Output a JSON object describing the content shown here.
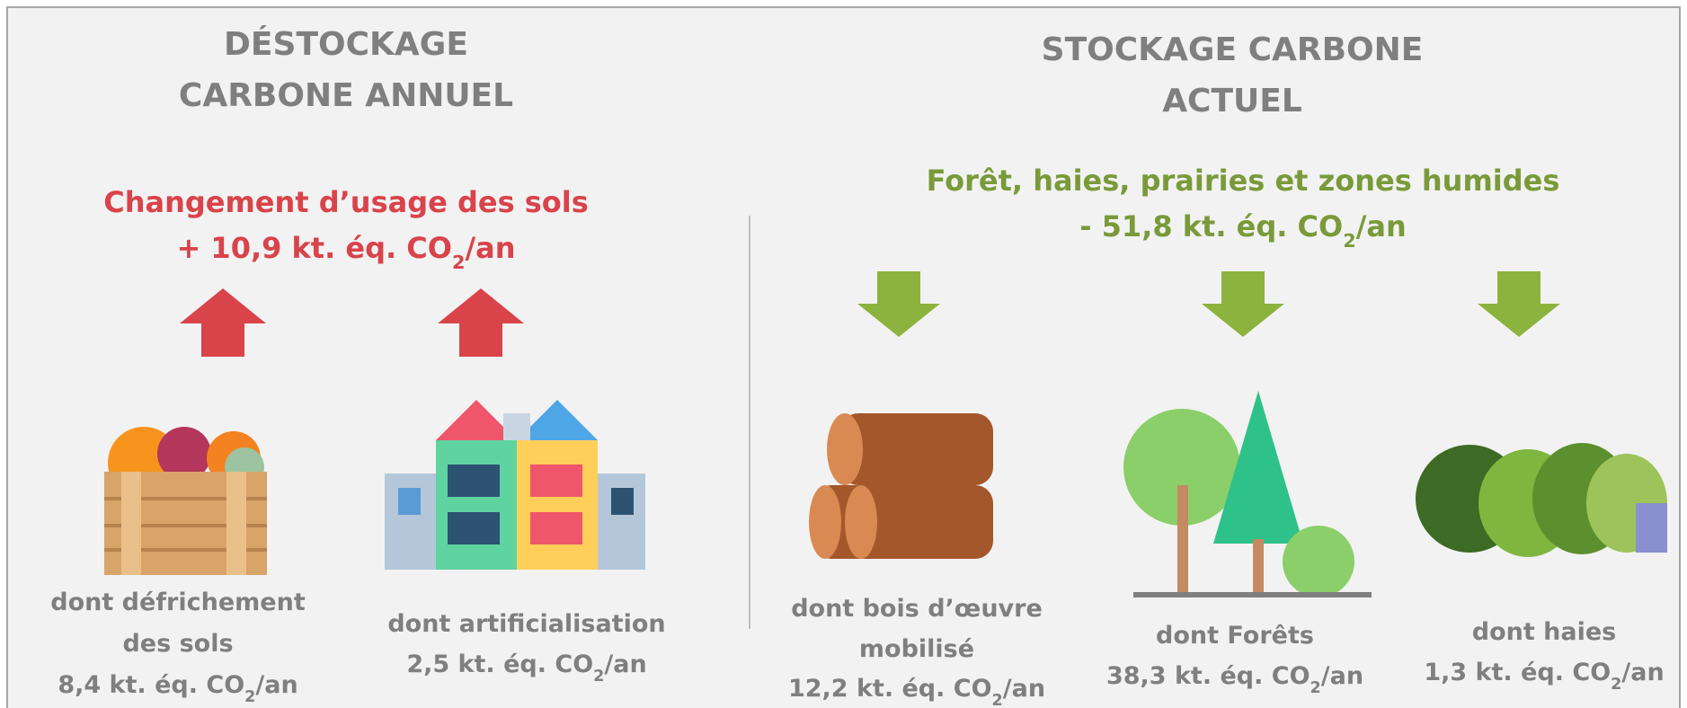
{
  "left": {
    "title": [
      "DÉSTOCKAGE",
      "CARBONE ANNUEL"
    ],
    "heading": "Changement d’usage des sols",
    "total": {
      "before": "+ 10,9 kt. éq. CO",
      "sub": "2",
      "after": "/an"
    },
    "items": [
      {
        "label": [
          "dont défrichement",
          "des sols"
        ],
        "value": {
          "before": "8,4 kt. éq. CO",
          "sub": "2",
          "after": "/an"
        }
      },
      {
        "label": [
          "dont artificialisation"
        ],
        "value": {
          "before": "2,5 kt. éq. CO",
          "sub": "2",
          "after": "/an"
        }
      }
    ]
  },
  "right": {
    "title": [
      "STOCKAGE CARBONE",
      "ACTUEL"
    ],
    "heading": "Forêt, haies, prairies et zones humides",
    "total": {
      "before": "- 51,8 kt. éq. CO",
      "sub": "2",
      "after": "/an"
    },
    "items": [
      {
        "label": [
          "dont bois d’œuvre",
          "mobilisé"
        ],
        "value": {
          "before": "12,2 kt. éq. CO",
          "sub": "2",
          "after": "/an"
        }
      },
      {
        "label": [
          "dont Forêts"
        ],
        "value": {
          "before": "38,3 kt. éq. CO",
          "sub": "2",
          "after": "/an"
        }
      },
      {
        "label": [
          "dont haies"
        ],
        "value": {
          "before": "1,3 kt. éq. CO",
          "sub": "2",
          "after": "/an"
        }
      }
    ]
  }
}
